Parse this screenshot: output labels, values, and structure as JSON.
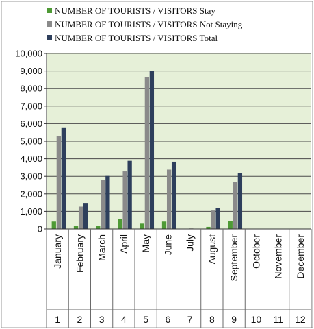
{
  "chart_data": {
    "type": "bar",
    "categories": [
      "January",
      "February",
      "March",
      "April",
      "May",
      "June",
      "July",
      "August",
      "September",
      "October",
      "November",
      "December"
    ],
    "category_numbers": [
      "1",
      "2",
      "3",
      "4",
      "5",
      "6",
      "7",
      "8",
      "9",
      "10",
      "11",
      "12"
    ],
    "series": [
      {
        "name": "NUMBER OF TOURISTS / VISITORS Stay",
        "color": "#4e9a35",
        "values": [
          420,
          180,
          180,
          580,
          300,
          420,
          0,
          120,
          460,
          0,
          0,
          0
        ]
      },
      {
        "name": "NUMBER OF TOURISTS / VISITORS Not Staying",
        "color": "#8a8a8a",
        "values": [
          5300,
          1270,
          2780,
          3280,
          8650,
          3380,
          30,
          1050,
          2680,
          0,
          0,
          0
        ]
      },
      {
        "name": "NUMBER OF TOURISTS / VISITORS Total",
        "color": "#2e3f5c",
        "values": [
          5750,
          1480,
          3020,
          3880,
          9000,
          3830,
          0,
          1200,
          3180,
          0,
          0,
          0
        ]
      }
    ],
    "y_ticks": [
      "0",
      "1,000",
      "2,000",
      "3,000",
      "4,000",
      "5,000",
      "6,000",
      "7,000",
      "8,000",
      "9,000",
      "10,000"
    ],
    "ylim": [
      0,
      10000
    ],
    "grid": true,
    "legend_position": "top",
    "plot_background": "#e6f0d8",
    "gridline_color": "#4a4a4a"
  }
}
